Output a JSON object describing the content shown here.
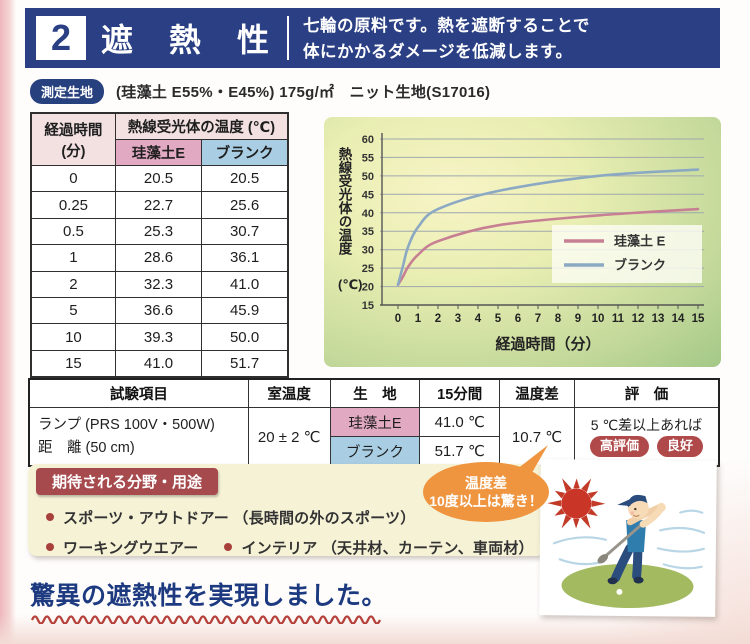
{
  "header": {
    "number": "2",
    "title": "遮　熱　性",
    "desc_line1": "七輪の原料です。熱を遮断することで",
    "desc_line2": "体にかかるダメージを低減します。"
  },
  "spec": {
    "badge": "測定生地",
    "text": "(珪藻土 E55%・E45%) 175g/㎡　ニット生地(S17016)"
  },
  "data_table": {
    "col_time_l1": "経過時間",
    "col_time_l2": "(分)",
    "col_temp": "熱線受光体の温度 (℃)",
    "col_sub_1": "珪藻土E",
    "col_sub_2": "ブランク",
    "rows": [
      [
        "0",
        "20.5",
        "20.5"
      ],
      [
        "0.25",
        "22.7",
        "25.6"
      ],
      [
        "0.5",
        "25.3",
        "30.7"
      ],
      [
        "1",
        "28.6",
        "36.1"
      ],
      [
        "2",
        "32.3",
        "41.0"
      ],
      [
        "5",
        "36.6",
        "45.9"
      ],
      [
        "10",
        "39.3",
        "50.0"
      ],
      [
        "15",
        "41.0",
        "51.7"
      ]
    ]
  },
  "chart_data": {
    "type": "line",
    "x": [
      0,
      0.25,
      0.5,
      1,
      2,
      5,
      10,
      15
    ],
    "series": [
      {
        "name": "珪藻土 E",
        "color": "#c77f93",
        "values": [
          20.5,
          22.7,
          25.3,
          28.6,
          32.3,
          36.6,
          39.3,
          41.0
        ]
      },
      {
        "name": "ブランク",
        "color": "#8ca9c4",
        "values": [
          20.5,
          25.6,
          30.7,
          36.1,
          41.0,
          45.9,
          50.0,
          51.7
        ]
      }
    ],
    "xlabel": "経過時間（分）",
    "ylabel": "熱線受光体の温度（℃）",
    "ylabel_vertical": "熱線受光体の温度",
    "ylabel_unit": "(℃)",
    "xlim": [
      0,
      15
    ],
    "ylim": [
      15,
      60
    ],
    "yticks": [
      15,
      20,
      25,
      30,
      35,
      40,
      45,
      50,
      55,
      60
    ],
    "xticks": [
      0,
      1,
      2,
      3,
      4,
      5,
      6,
      7,
      8,
      9,
      10,
      11,
      12,
      13,
      14,
      15
    ],
    "grid": "horizontal",
    "legend_position": "right-middle"
  },
  "test_table": {
    "headers": [
      "試験項目",
      "室温度",
      "生　地",
      "15分間",
      "温度差",
      "評　価"
    ],
    "item_line1": "ランプ (PRS 100V・500W)",
    "item_line2": "距　離 (50 cm)",
    "room_temp": "20 ± 2 ℃",
    "fabric1": "珪藻土E",
    "temp1": "41.0 ℃",
    "fabric2": "ブランク",
    "temp2": "51.7 ℃",
    "diff": "10.7 ℃",
    "eval_text": "5 ℃差以上あれば",
    "badges": [
      "高評価",
      "良好"
    ]
  },
  "bubble": {
    "line1": "温度差",
    "line2": "10度以上は驚き！"
  },
  "usage": {
    "badge": "期待される分野・用途",
    "bullets": [
      "スポーツ・アウトドアー （長時間の外のスポーツ）",
      "ワーキングウエアー",
      "インテリア （天井材、カーテン、車両材）"
    ]
  },
  "tagline": "驚異の遮熱性を実現しました。",
  "colors": {
    "banner_navy": "#2b4084",
    "table_header_pink": "#f3e1e1",
    "keisodo_pink": "#e2aac2",
    "blank_blue": "#a9cee3",
    "eval_badge_red": "#b04a4a",
    "bubble_orange": "#ef9540",
    "usage_cream": "#f6f2d6",
    "usage_badge_maroon": "#a64a4e",
    "tagline_navy": "#1d3a80",
    "wave_red": "#b5413a"
  }
}
